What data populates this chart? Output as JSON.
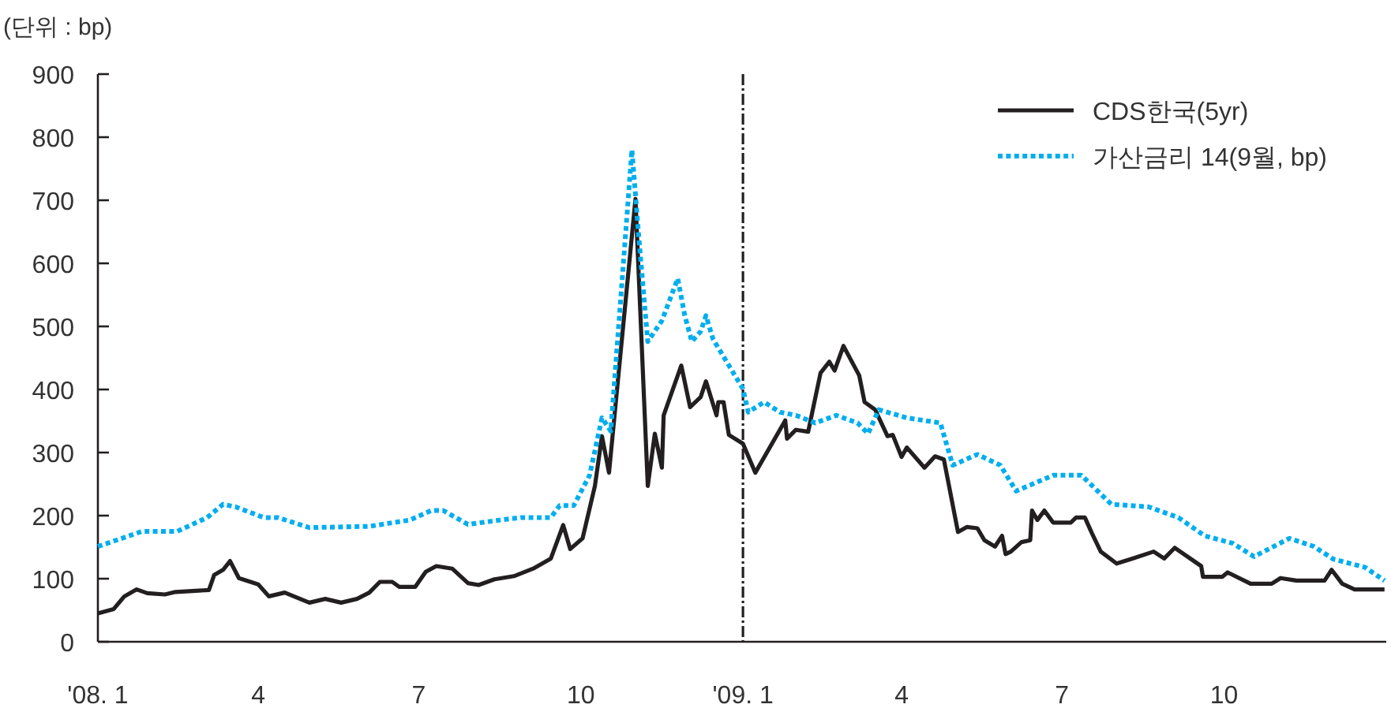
{
  "chart_data": {
    "type": "line",
    "ylabel": "(단위 : bp)",
    "xlim": [
      "2008-01-01",
      "2010-01-01"
    ],
    "xticks": [
      {
        "value": "2008-01-01",
        "label": "'08. 1"
      },
      {
        "value": "2008-04-01",
        "label": "4"
      },
      {
        "value": "2008-07-01",
        "label": "7"
      },
      {
        "value": "2008-10-01",
        "label": "10"
      },
      {
        "value": "2009-01-01",
        "label": "'09. 1"
      },
      {
        "value": "2009-04-01",
        "label": "4"
      },
      {
        "value": "2009-07-01",
        "label": "7"
      },
      {
        "value": "2009-10-01",
        "label": "10"
      }
    ],
    "ylim": [
      0,
      900
    ],
    "yticks": [
      0,
      100,
      200,
      300,
      400,
      500,
      600,
      700,
      800,
      900
    ],
    "grid": false,
    "legend": "top right",
    "marker": "none",
    "ref_lines": [
      {
        "axis": "x",
        "value": "2009-01-01",
        "color": "#231f20",
        "line_style": "dashed"
      }
    ],
    "series": [
      {
        "name": "CDS한국(5yr)",
        "color": "#231f20",
        "line_style": "solid",
        "x": [
          "2008-01-01",
          "2008-01-10",
          "2008-01-16",
          "2008-01-23",
          "2008-01-29",
          "2008-02-08",
          "2008-02-14",
          "2008-03-04",
          "2008-03-07",
          "2008-03-12",
          "2008-03-16",
          "2008-03-21",
          "2008-04-01",
          "2008-04-07",
          "2008-04-16",
          "2008-04-30",
          "2008-05-09",
          "2008-05-18",
          "2008-05-27",
          "2008-06-03",
          "2008-06-09",
          "2008-06-16",
          "2008-06-20",
          "2008-06-29",
          "2008-07-05",
          "2008-07-11",
          "2008-07-20",
          "2008-07-29",
          "2008-08-04",
          "2008-08-13",
          "2008-08-24",
          "2008-09-04",
          "2008-09-14",
          "2008-09-21",
          "2008-09-25",
          "2008-10-02",
          "2008-10-09",
          "2008-10-13",
          "2008-10-17",
          "2008-11-01",
          "2008-11-08",
          "2008-11-12",
          "2008-11-16",
          "2008-11-17",
          "2008-11-27",
          "2008-12-02",
          "2008-12-08",
          "2008-12-11",
          "2008-12-17",
          "2008-12-18",
          "2008-12-21",
          "2008-12-24",
          "2009-01-01",
          "2009-01-08",
          "2009-01-25",
          "2009-01-26",
          "2009-01-31",
          "2009-02-07",
          "2009-02-14",
          "2009-02-19",
          "2009-02-22",
          "2009-02-27",
          "2009-03-08",
          "2009-03-11",
          "2009-03-17",
          "2009-03-24",
          "2009-03-27",
          "2009-04-01",
          "2009-04-04",
          "2009-04-14",
          "2009-04-20",
          "2009-04-25",
          "2009-05-03",
          "2009-05-08",
          "2009-05-14",
          "2009-05-18",
          "2009-05-24",
          "2009-05-28",
          "2009-05-30",
          "2009-06-02",
          "2009-06-08",
          "2009-06-13",
          "2009-06-14",
          "2009-06-17",
          "2009-06-21",
          "2009-06-26",
          "2009-07-06",
          "2009-07-09",
          "2009-07-14",
          "2009-07-18",
          "2009-07-23",
          "2009-08-01",
          "2009-08-10",
          "2009-08-22",
          "2009-08-28",
          "2009-09-03",
          "2009-09-18",
          "2009-09-19",
          "2009-09-30",
          "2009-10-03",
          "2009-10-16",
          "2009-10-28",
          "2009-11-02",
          "2009-11-11",
          "2009-11-27",
          "2009-12-01",
          "2009-12-07",
          "2009-12-14",
          "2009-12-31"
        ],
        "values": [
          45,
          52,
          72,
          83,
          77,
          75,
          79,
          82,
          106,
          114,
          128,
          101,
          91,
          72,
          78,
          62,
          68,
          62,
          68,
          78,
          95,
          95,
          87,
          87,
          111,
          120,
          116,
          93,
          90,
          99,
          104,
          116,
          132,
          185,
          147,
          164,
          247,
          326,
          268,
          702,
          247,
          330,
          276,
          359,
          438,
          372,
          388,
          413,
          359,
          380,
          380,
          328,
          314,
          268,
          351,
          322,
          336,
          333,
          426,
          444,
          430,
          469,
          422,
          380,
          368,
          326,
          328,
          293,
          308,
          276,
          294,
          289,
          174,
          182,
          180,
          161,
          151,
          168,
          139,
          143,
          158,
          161,
          208,
          193,
          208,
          189,
          189,
          197,
          197,
          172,
          143,
          124,
          132,
          143,
          132,
          149,
          120,
          103,
          103,
          110,
          92,
          92,
          101,
          97,
          97,
          114,
          92,
          83,
          83
        ]
      },
      {
        "name": "가산금리 14(9월, bp)",
        "color": "#00aeef",
        "line_style": "dotted",
        "x": [
          "2008-01-01",
          "2008-01-26",
          "2008-02-15",
          "2008-03-03",
          "2008-03-12",
          "2008-03-19",
          "2008-04-04",
          "2008-04-12",
          "2008-04-30",
          "2008-06-03",
          "2008-06-26",
          "2008-07-08",
          "2008-07-15",
          "2008-07-29",
          "2008-08-16",
          "2008-08-28",
          "2008-09-14",
          "2008-09-19",
          "2008-09-27",
          "2008-10-06",
          "2008-10-13",
          "2008-10-18",
          "2008-10-30",
          "2008-11-03",
          "2008-11-08",
          "2008-11-16",
          "2008-11-25",
          "2008-11-29",
          "2008-12-03",
          "2008-12-08",
          "2008-12-11",
          "2008-12-15",
          "2009-01-01",
          "2009-01-04",
          "2009-01-13",
          "2009-01-22",
          "2009-01-31",
          "2009-02-11",
          "2009-02-23",
          "2009-03-07",
          "2009-03-13",
          "2009-03-19",
          "2009-04-04",
          "2009-04-23",
          "2009-04-30",
          "2009-05-14",
          "2009-05-27",
          "2009-06-05",
          "2009-06-26",
          "2009-07-12",
          "2009-07-29",
          "2009-08-19",
          "2009-09-05",
          "2009-09-20",
          "2009-10-06",
          "2009-10-18",
          "2009-11-07",
          "2009-11-21",
          "2009-12-02",
          "2009-12-20",
          "2009-12-31"
        ],
        "values": [
          151,
          175,
          175,
          197,
          218,
          214,
          197,
          197,
          181,
          183,
          193,
          208,
          208,
          186,
          193,
          197,
          197,
          216,
          216,
          264,
          355,
          334,
          780,
          638,
          476,
          509,
          576,
          517,
          476,
          492,
          517,
          480,
          401,
          364,
          380,
          364,
          359,
          347,
          359,
          347,
          330,
          368,
          355,
          347,
          280,
          297,
          280,
          239,
          264,
          264,
          218,
          214,
          197,
          168,
          156,
          135,
          164,
          151,
          131,
          118,
          97
        ]
      }
    ]
  }
}
